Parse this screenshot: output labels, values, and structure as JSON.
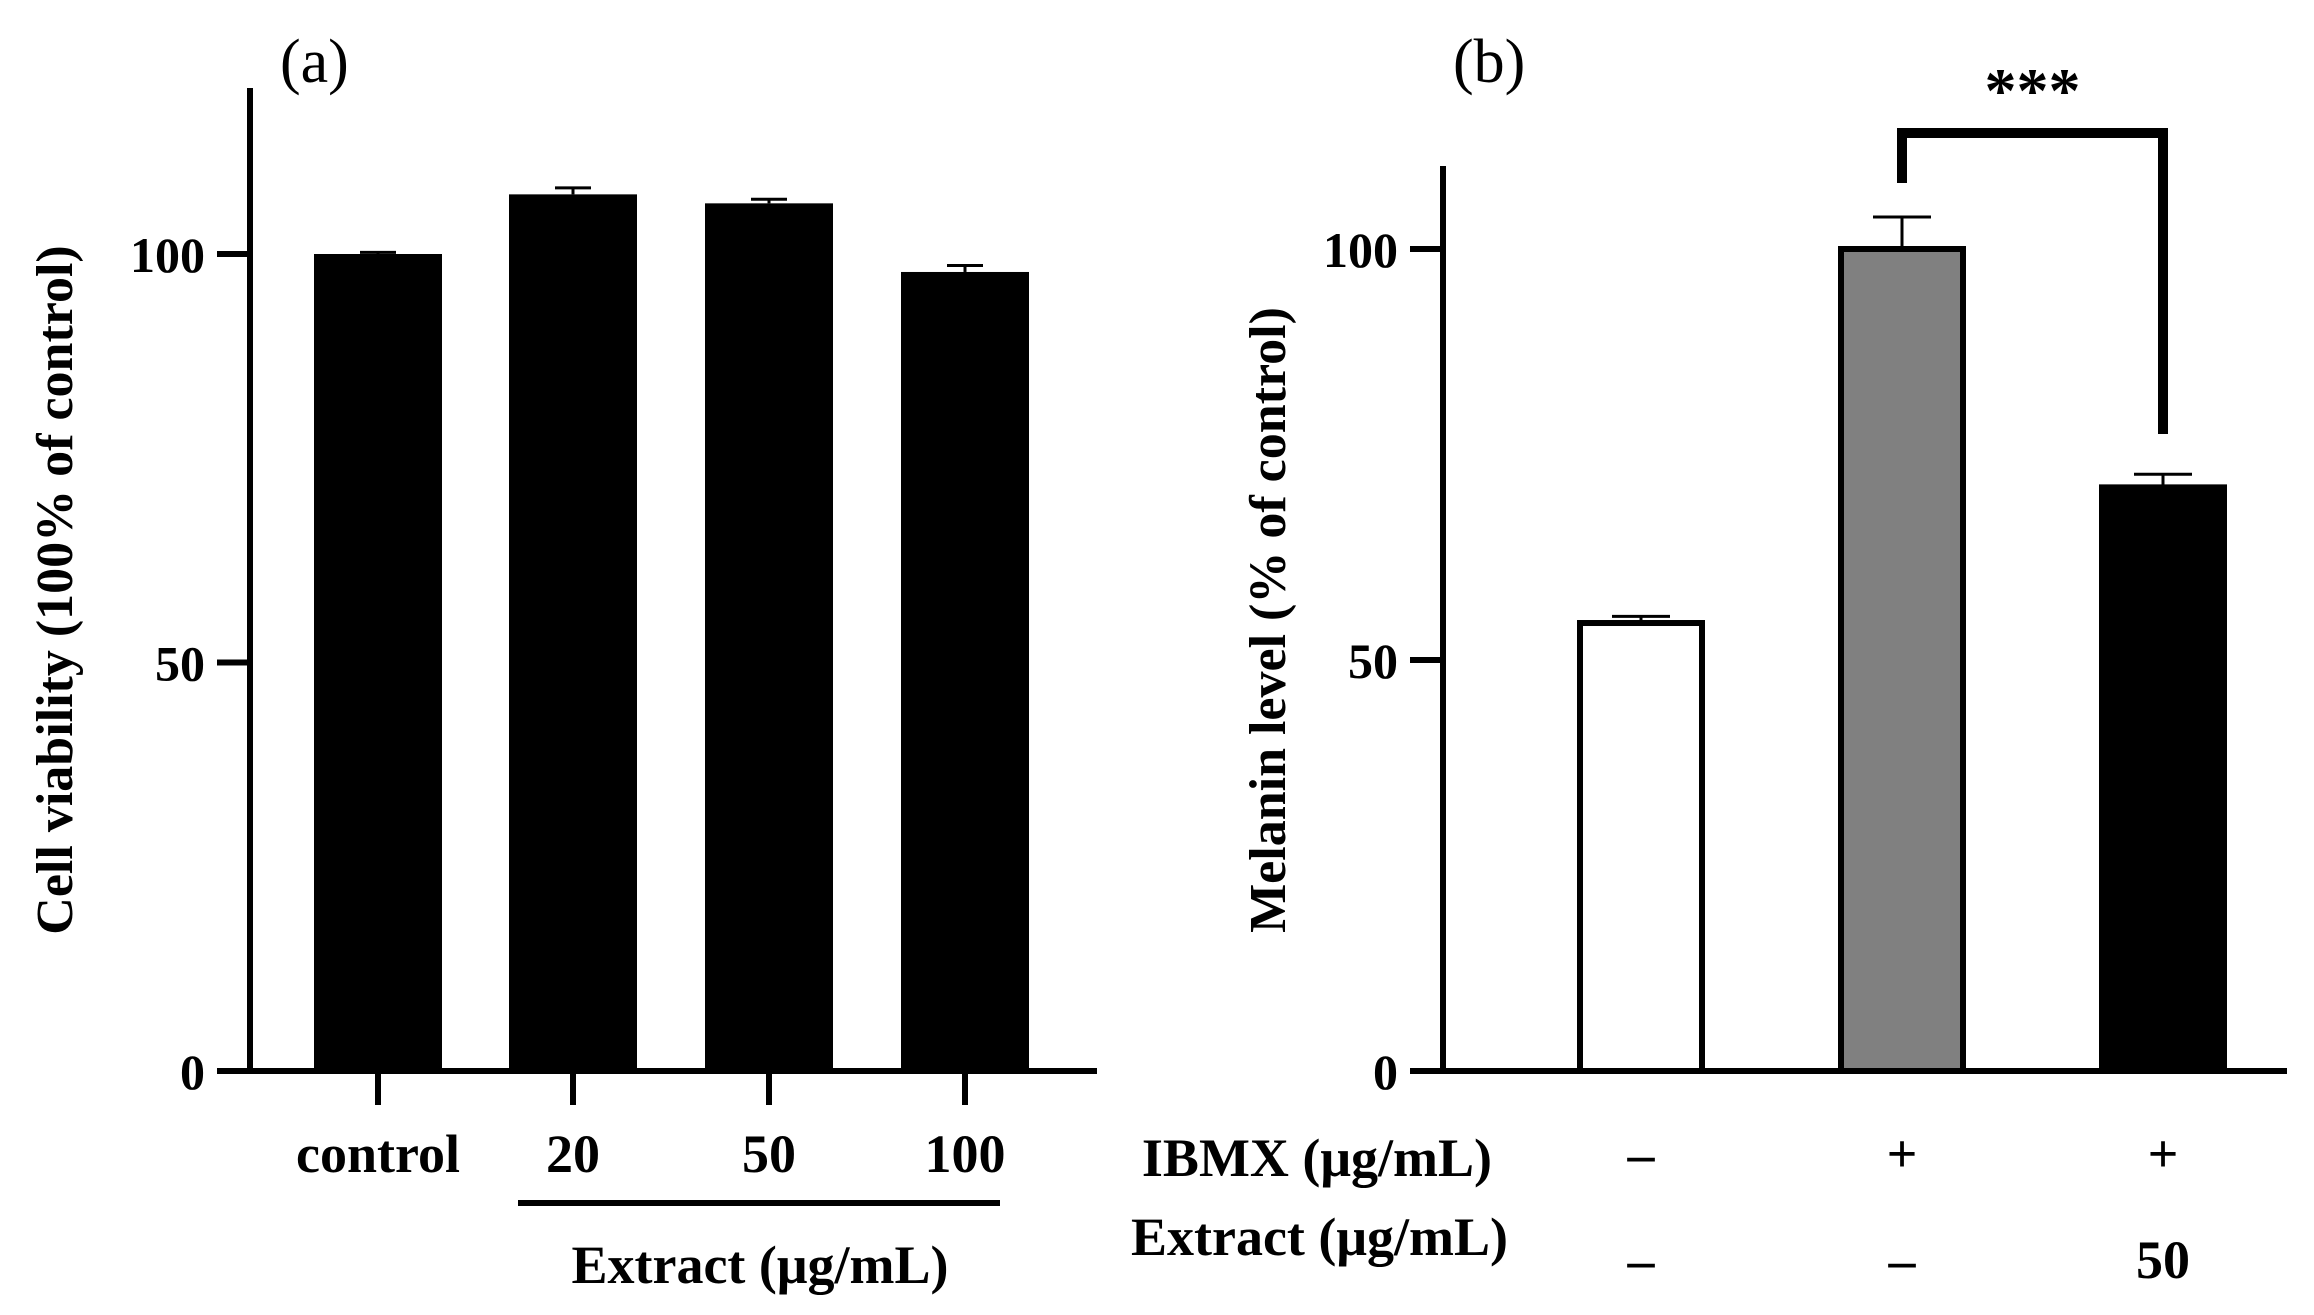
{
  "chart_data": [
    {
      "panel_label": "(a)",
      "type": "bar",
      "ylabel": "Cell viability (100% of control)",
      "ylim": [
        0,
        120
      ],
      "yticks": [
        0,
        50,
        100
      ],
      "categories": [
        "control",
        "20",
        "50",
        "100"
      ],
      "values": [
        100,
        107.3,
        106.2,
        97.8
      ],
      "errors": [
        0.2,
        0.8,
        0.5,
        0.8
      ],
      "bar_colors": [
        "#000000",
        "#000000",
        "#000000",
        "#000000"
      ],
      "group_label": "Extract (μg/mL)"
    },
    {
      "panel_label": "(b)",
      "type": "bar",
      "ylabel": "Melanin level (% of control)",
      "ylim": [
        0,
        110
      ],
      "yticks": [
        0,
        50,
        100
      ],
      "values": [
        54.5,
        100,
        71
      ],
      "errors": [
        0.8,
        3.9,
        1.6
      ],
      "bar_colors": [
        "#ffffff",
        "#808080",
        "#000000"
      ],
      "row_labels": [
        "IBMX (μg/mL)",
        "Extract (μg/mL)"
      ],
      "ibmx_row": [
        "–",
        "+",
        "+"
      ],
      "extract_row": [
        "–",
        "–",
        "50"
      ],
      "significance": {
        "from_bar": 1,
        "to_bar": 2,
        "label": "***"
      }
    }
  ]
}
